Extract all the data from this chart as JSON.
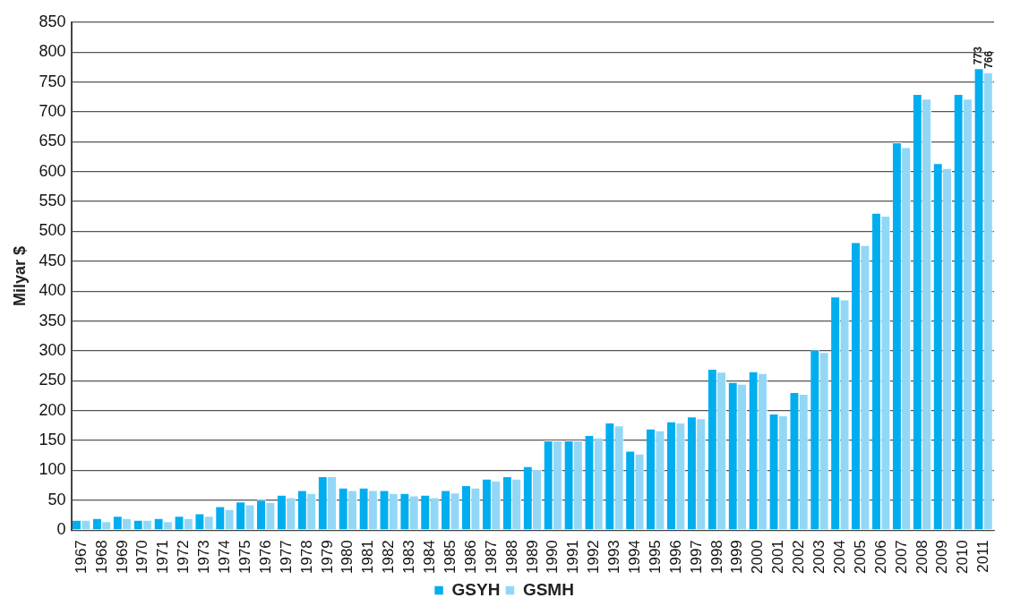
{
  "chart_data": {
    "type": "bar",
    "ylabel": "Milyar $",
    "categories": [
      "1967",
      "1968",
      "1969",
      "1970",
      "1971",
      "1972",
      "1973",
      "1974",
      "1975",
      "1976",
      "1977",
      "1978",
      "1979",
      "1980",
      "1981",
      "1982",
      "1983",
      "1984",
      "1985",
      "1986",
      "1987",
      "1988",
      "1989",
      "1990",
      "1991",
      "1992",
      "1993",
      "1994",
      "1995",
      "1996",
      "1997",
      "1998",
      "1999",
      "2000",
      "2001",
      "2002",
      "2003",
      "2004",
      "2005",
      "2006",
      "2007",
      "2008",
      "2009",
      "2010",
      "2011"
    ],
    "series": [
      {
        "name": "GSYH",
        "color": "#00aeef",
        "values": [
          17,
          20,
          24,
          17,
          20,
          24,
          28,
          40,
          48,
          51,
          59,
          67,
          90,
          71,
          71,
          67,
          62,
          59,
          67,
          75,
          86,
          90,
          107,
          150,
          150,
          159,
          180,
          133,
          170,
          182,
          190,
          270,
          248,
          266,
          195,
          231,
          302,
          391,
          482,
          531,
          649,
          730,
          614,
          730,
          773
        ],
        "value_labels": [
          null,
          null,
          null,
          null,
          null,
          null,
          null,
          null,
          null,
          null,
          null,
          null,
          null,
          null,
          null,
          null,
          null,
          null,
          null,
          null,
          null,
          null,
          null,
          null,
          null,
          null,
          null,
          null,
          null,
          null,
          null,
          null,
          null,
          null,
          null,
          null,
          null,
          null,
          null,
          null,
          null,
          null,
          null,
          null,
          "773"
        ]
      },
      {
        "name": "GSMH",
        "color": "#92d8f6",
        "values": [
          17,
          15,
          20,
          17,
          15,
          20,
          24,
          35,
          43,
          47,
          55,
          62,
          90,
          67,
          67,
          62,
          58,
          55,
          63,
          71,
          83,
          86,
          102,
          150,
          150,
          155,
          175,
          128,
          167,
          180,
          187,
          265,
          245,
          263,
          192,
          228,
          298,
          386,
          477,
          526,
          641,
          722,
          606,
          722,
          766
        ],
        "value_labels": [
          null,
          null,
          null,
          null,
          null,
          null,
          null,
          null,
          null,
          null,
          null,
          null,
          null,
          null,
          null,
          null,
          null,
          null,
          null,
          null,
          null,
          null,
          null,
          null,
          null,
          null,
          null,
          null,
          null,
          null,
          null,
          null,
          null,
          null,
          null,
          null,
          null,
          null,
          null,
          null,
          null,
          null,
          null,
          null,
          "766"
        ]
      }
    ],
    "ylim": [
      0,
      850
    ],
    "yticks": [
      0,
      50,
      100,
      150,
      200,
      250,
      300,
      350,
      400,
      450,
      500,
      550,
      600,
      650,
      700,
      750,
      800,
      850
    ],
    "grid": "y",
    "legend": "bottom"
  }
}
